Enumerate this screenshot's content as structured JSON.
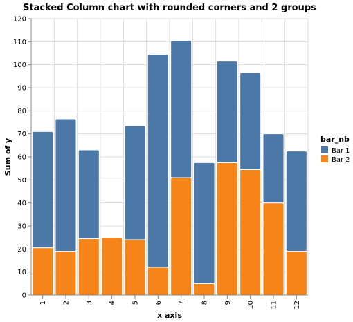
{
  "chart_data": {
    "type": "bar",
    "stacked": true,
    "title": "Stacked Column chart with rounded corners and 2 groups",
    "xlabel": "x axis",
    "ylabel": "Sum of y",
    "ylim": [
      0,
      120
    ],
    "yticks": [
      0,
      10,
      20,
      30,
      40,
      50,
      60,
      70,
      80,
      90,
      100,
      110,
      120
    ],
    "grid": true,
    "legend_title": "bar_nb",
    "legend_position": "top-right",
    "categories": [
      "1",
      "2",
      "3",
      "4",
      "5",
      "6",
      "7",
      "8",
      "9",
      "10",
      "11",
      "12"
    ],
    "series": [
      {
        "name": "Bar 2",
        "color": "#f58518",
        "values": [
          20.5,
          19,
          24.5,
          25,
          24,
          12,
          51,
          5,
          57.5,
          54.5,
          40,
          19
        ]
      },
      {
        "name": "Bar 1",
        "color": "#4c78a8",
        "values": [
          50.5,
          57.5,
          38.5,
          0,
          49.5,
          92.5,
          59.5,
          52.5,
          44,
          42,
          30,
          43.5
        ]
      }
    ],
    "legend_order": [
      "Bar 1",
      "Bar 2"
    ]
  }
}
